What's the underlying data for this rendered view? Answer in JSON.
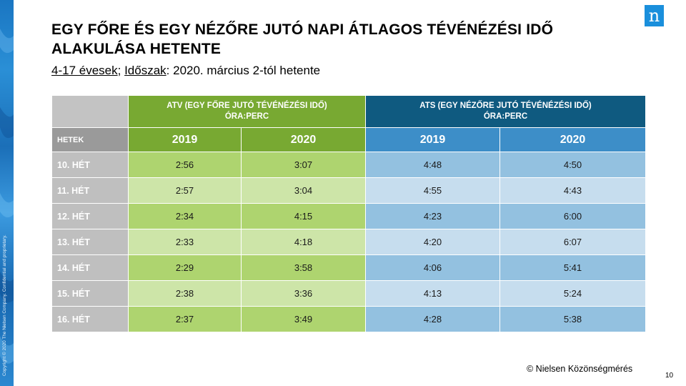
{
  "title": "EGY FŐRE ÉS EGY NÉZŐRE JUTÓ NAPI ÁTLAGOS TÉVÉNÉZÉSI IDŐ ALAKULÁSA HETENTE",
  "subtitle": {
    "age": "4-17 évesek",
    "sep1": "; ",
    "period_label": "Időszak",
    "period_value": ": 2020. március 2-tól hetente"
  },
  "logo_glyph": "n",
  "table": {
    "atv_header_line1": "ATV (EGY FŐRE JUTÓ TÉVÉNÉZÉSI IDŐ)",
    "atv_header_line2": "ÓRA:PERC",
    "ats_header_line1": "ATS (EGY NÉZŐRE JUTÓ TÉVÉNÉZÉSI IDŐ)",
    "ats_header_line2": "ÓRA:PERC",
    "weeks_label": "HETEK",
    "years": [
      "2019",
      "2020",
      "2019",
      "2020"
    ],
    "rows": [
      {
        "week": "10. HÉT",
        "atv2019": "2:56",
        "atv2020": "3:07",
        "ats2019": "4:48",
        "ats2020": "4:50"
      },
      {
        "week": "11. HÉT",
        "atv2019": "2:57",
        "atv2020": "3:04",
        "ats2019": "4:55",
        "ats2020": "4:43"
      },
      {
        "week": "12. HÉT",
        "atv2019": "2:34",
        "atv2020": "4:15",
        "ats2019": "4:23",
        "ats2020": "6:00"
      },
      {
        "week": "13. HÉT",
        "atv2019": "2:33",
        "atv2020": "4:18",
        "ats2019": "4:20",
        "ats2020": "6:07"
      },
      {
        "week": "14. HÉT",
        "atv2019": "2:29",
        "atv2020": "3:58",
        "ats2019": "4:06",
        "ats2020": "5:41"
      },
      {
        "week": "15. HÉT",
        "atv2019": "2:38",
        "atv2020": "3:36",
        "ats2019": "4:13",
        "ats2020": "5:24"
      },
      {
        "week": "16. HÉT",
        "atv2019": "2:37",
        "atv2020": "3:49",
        "ats2019": "4:28",
        "ats2020": "5:38"
      }
    ]
  },
  "footer": "© Nielsen Közönségmérés",
  "page_number": "10",
  "copyright": "Copyright © 2020 The Nielsen Company. Confidential and proprietary.",
  "colors": {
    "atv_header": "#78a932",
    "ats_header": "#0f5a80",
    "ats_year": "#3d8ec8",
    "brand_blue": "#1a8fdc"
  }
}
